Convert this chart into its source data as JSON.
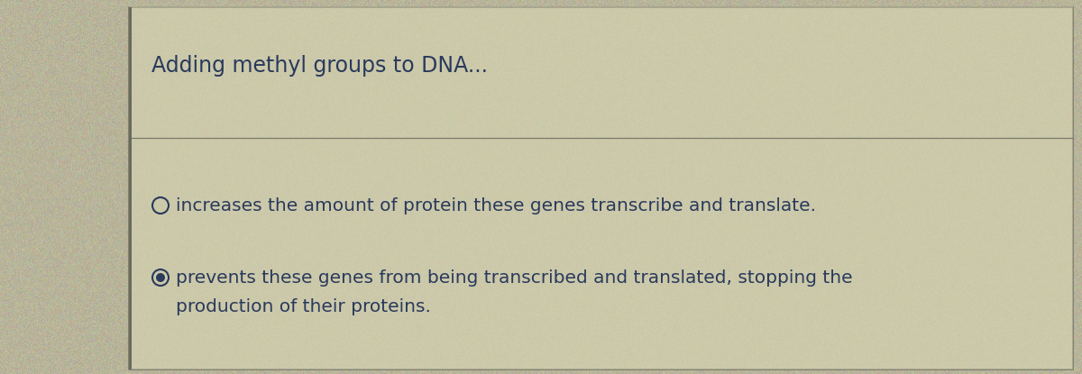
{
  "title": "Adding methyl groups to DNA...",
  "title_fontsize": 17,
  "option1_text": "increases the amount of protein these genes transcribe and translate.",
  "option2_line1": "prevents these genes from being transcribed and translated, stopping the",
  "option2_line2": "production of their proteins.",
  "text_color": "#2a3a5c",
  "bg_color": "#b8b49a",
  "card_bg": "#ccc9aa",
  "border_color": "#7a7a6a",
  "left_border_color": "#6a6a5a",
  "option_fontsize": 14.5,
  "radio_size": 9,
  "radio_inner_size": 5
}
